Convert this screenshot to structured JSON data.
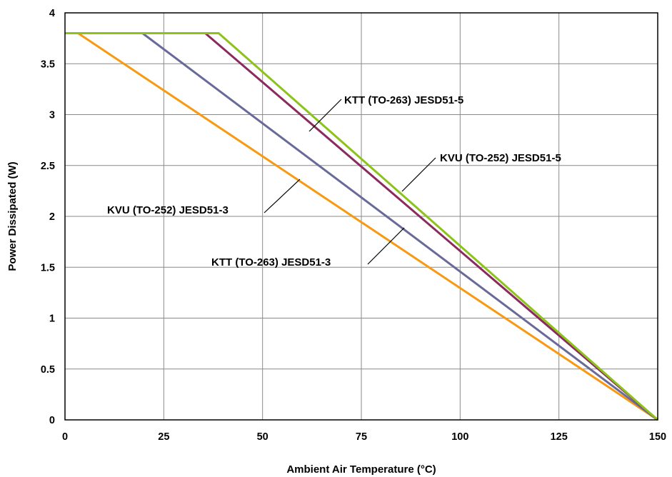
{
  "chart_data": {
    "type": "line",
    "title": "",
    "xlabel": "Ambient Air Temperature (°C)",
    "ylabel": "Power Dissipated (W)",
    "xlim": [
      0,
      150
    ],
    "ylim": [
      0,
      4
    ],
    "x_ticks": [
      0,
      25,
      50,
      75,
      100,
      125,
      150
    ],
    "x_tick_labels": [
      "0",
      "25",
      "50",
      "75",
      "100",
      "125",
      "150"
    ],
    "y_ticks": [
      0,
      0.5,
      1,
      1.5,
      2,
      2.5,
      3,
      3.5,
      4
    ],
    "y_tick_labels": [
      "0",
      "0.5",
      "1",
      "1.5",
      "2",
      "2.5",
      "3",
      "3.5",
      "4"
    ],
    "grid": true,
    "legend": "none",
    "series": [
      {
        "name": "KTT (TO-263) JESD51-5",
        "color": "#8b2a5e",
        "x": [
          0,
          35.5,
          150
        ],
        "y": [
          3.8,
          3.8,
          0
        ]
      },
      {
        "name": "KVU (TO-252) JESD51-5",
        "color": "#8cc31a",
        "x": [
          0,
          38.9,
          150
        ],
        "y": [
          3.8,
          3.8,
          0
        ]
      },
      {
        "name": "KVU (TO-252) JESD51-3",
        "color": "#f79a12",
        "x": [
          0,
          3.3,
          150
        ],
        "y": [
          3.8,
          3.8,
          0
        ]
      },
      {
        "name": "KTT (TO-263) JESD51-3",
        "color": "#6a6a9a",
        "x": [
          0,
          19.6,
          150
        ],
        "y": [
          3.8,
          3.8,
          0
        ]
      }
    ],
    "annotations": [
      {
        "text": "KTT (TO-263) JESD51-3",
        "series": 3
      },
      {
        "text": "KVU (TO-252) JESD51-3",
        "series": 2
      },
      {
        "text": "KVU (TO-252) JESD51-5",
        "series": 1
      },
      {
        "text": "KTT (TO-263) JESD51-5",
        "series": 0
      }
    ]
  }
}
